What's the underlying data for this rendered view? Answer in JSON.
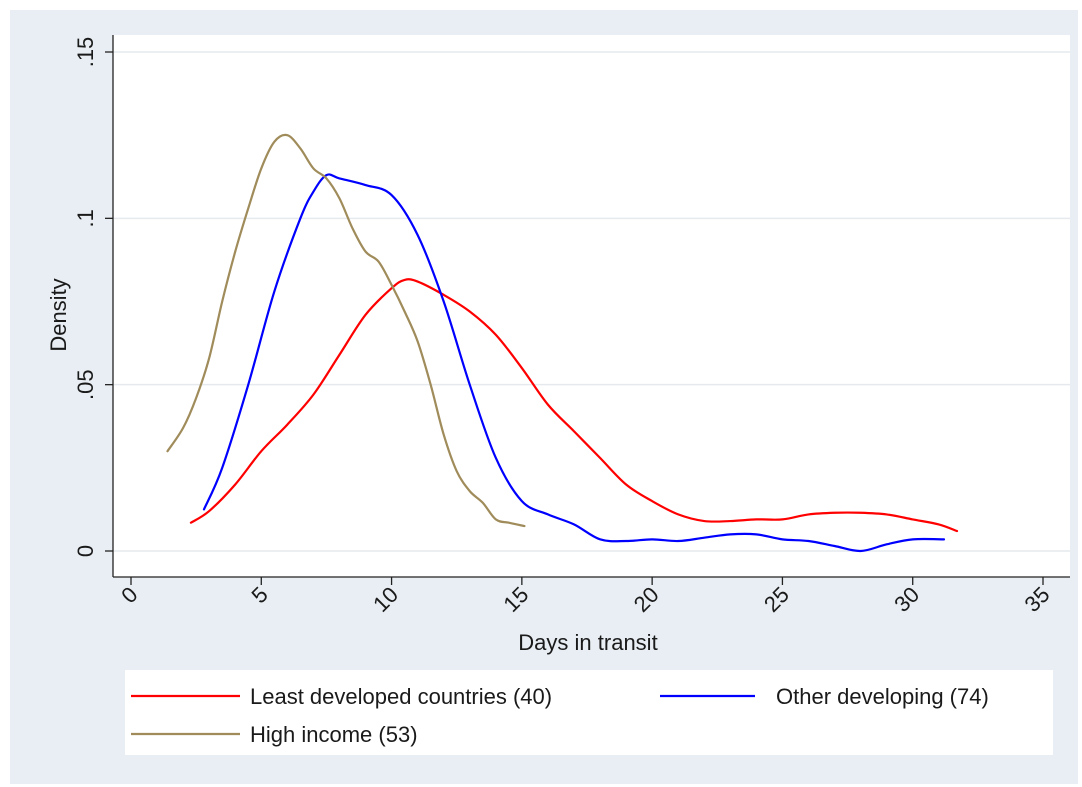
{
  "chart_data": {
    "type": "line",
    "title": "",
    "xlabel": "Days in transit",
    "ylabel": "Density",
    "xlim": [
      0,
      35
    ],
    "ylim": [
      0,
      0.15
    ],
    "xticks": [
      0,
      5,
      10,
      15,
      20,
      25,
      30,
      35
    ],
    "xtick_labels": [
      "0",
      "5",
      "10",
      "15",
      "20",
      "25",
      "30",
      "35"
    ],
    "yticks": [
      0,
      0.05,
      0.1,
      0.15
    ],
    "ytick_labels": [
      "0",
      ".05",
      ".1",
      ".15"
    ],
    "grid": "horizontal",
    "legend_position": "bottom",
    "series": [
      {
        "name": "Least developed countries (40)",
        "color": "#ff0000",
        "x": [
          2.3,
          3.0,
          4.0,
          5.0,
          6.0,
          7.0,
          8.0,
          9.0,
          10.0,
          10.5,
          11.0,
          12.0,
          13.0,
          14.0,
          15.0,
          16.0,
          17.0,
          18.0,
          19.0,
          20.0,
          21.0,
          22.0,
          23.0,
          24.0,
          25.0,
          26.0,
          27.0,
          28.0,
          29.0,
          30.0,
          31.0,
          31.7
        ],
        "y": [
          0.0085,
          0.012,
          0.02,
          0.03,
          0.038,
          0.047,
          0.059,
          0.071,
          0.079,
          0.0815,
          0.081,
          0.077,
          0.072,
          0.065,
          0.055,
          0.044,
          0.036,
          0.028,
          0.02,
          0.015,
          0.011,
          0.009,
          0.009,
          0.0095,
          0.0095,
          0.011,
          0.0115,
          0.0115,
          0.011,
          0.0095,
          0.008,
          0.006
        ]
      },
      {
        "name": "Other developing (74)",
        "color": "#0000ff",
        "x": [
          2.8,
          3.5,
          4.5,
          5.5,
          6.5,
          7.0,
          7.5,
          8.0,
          9.0,
          10.0,
          11.0,
          12.0,
          13.0,
          14.0,
          15.0,
          16.0,
          17.0,
          18.0,
          19.0,
          20.0,
          21.0,
          22.0,
          23.0,
          24.0,
          25.0,
          26.0,
          27.0,
          28.0,
          29.0,
          30.0,
          31.2
        ],
        "y": [
          0.0125,
          0.025,
          0.05,
          0.078,
          0.1,
          0.108,
          0.113,
          0.112,
          0.11,
          0.107,
          0.095,
          0.075,
          0.05,
          0.028,
          0.015,
          0.011,
          0.008,
          0.0035,
          0.003,
          0.0035,
          0.003,
          0.004,
          0.005,
          0.005,
          0.0035,
          0.003,
          0.0015,
          0.0,
          0.002,
          0.0035,
          0.0035
        ]
      },
      {
        "name": "High income (53)",
        "color": "#a08c5b",
        "x": [
          1.4,
          2.0,
          2.5,
          3.0,
          3.5,
          4.0,
          4.5,
          5.0,
          5.5,
          6.0,
          6.5,
          7.0,
          7.5,
          8.0,
          8.5,
          9.0,
          9.5,
          10.0,
          10.5,
          11.0,
          11.5,
          12.0,
          12.5,
          13.0,
          13.5,
          14.0,
          14.5,
          15.1
        ],
        "y": [
          0.03,
          0.037,
          0.046,
          0.058,
          0.075,
          0.09,
          0.103,
          0.115,
          0.123,
          0.125,
          0.121,
          0.115,
          0.112,
          0.106,
          0.097,
          0.09,
          0.087,
          0.08,
          0.072,
          0.063,
          0.05,
          0.035,
          0.024,
          0.018,
          0.0145,
          0.0095,
          0.0085,
          0.0075
        ]
      }
    ]
  }
}
